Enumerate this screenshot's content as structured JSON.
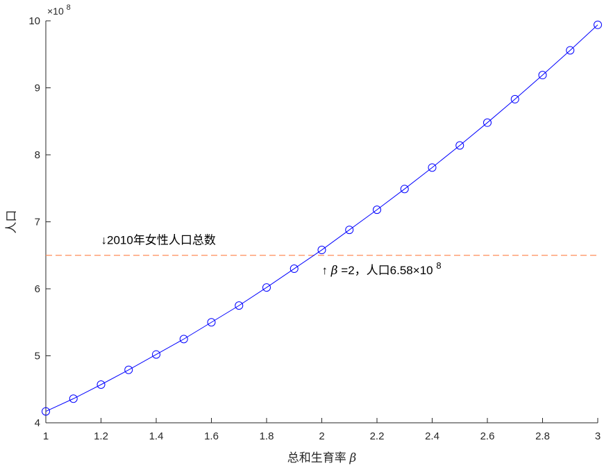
{
  "chart_data": {
    "type": "line",
    "title": "",
    "xlabel": "总和生育率",
    "xlabel_symbol": "β",
    "ylabel": "人口",
    "y_exponent_label": "×10",
    "y_exponent_power": "8",
    "xlim": [
      1,
      3
    ],
    "ylim": [
      4,
      10
    ],
    "x_ticks": [
      1,
      1.2,
      1.4,
      1.6,
      1.8,
      2,
      2.2,
      2.4,
      2.6,
      2.8,
      3
    ],
    "x_tick_labels": [
      "1",
      "1.2",
      "1.4",
      "1.6",
      "1.8",
      "2",
      "2.2",
      "2.4",
      "2.6",
      "2.8",
      "3"
    ],
    "y_ticks": [
      4,
      5,
      6,
      7,
      8,
      9,
      10
    ],
    "y_tick_labels": [
      "4",
      "5",
      "6",
      "7",
      "8",
      "9",
      "10"
    ],
    "grid": false,
    "series": [
      {
        "color": "#0000ff",
        "marker": "circle",
        "x": [
          1,
          1.1,
          1.2,
          1.3,
          1.4,
          1.5,
          1.6,
          1.7,
          1.8,
          1.9,
          2,
          2.1,
          2.2,
          2.3,
          2.4,
          2.5,
          2.6,
          2.7,
          2.8,
          2.9,
          3
        ],
        "y": [
          4.17,
          4.36,
          4.57,
          4.79,
          5.02,
          5.25,
          5.5,
          5.75,
          6.02,
          6.3,
          6.58,
          6.88,
          7.18,
          7.49,
          7.81,
          8.14,
          8.48,
          8.83,
          9.19,
          9.56,
          9.94
        ]
      }
    ],
    "reference_line": {
      "y": 6.5,
      "color": "#ff8c5a",
      "style": "dashed"
    },
    "annotations": [
      {
        "text": "↓2010年女性人口总数",
        "x": 1.2,
        "y": 6.67
      },
      {
        "prefix": "↑",
        "symbol": "β",
        "text": "=2，人口6.58×10",
        "sup": "8",
        "x": 2.0,
        "y": 6.22
      }
    ]
  }
}
